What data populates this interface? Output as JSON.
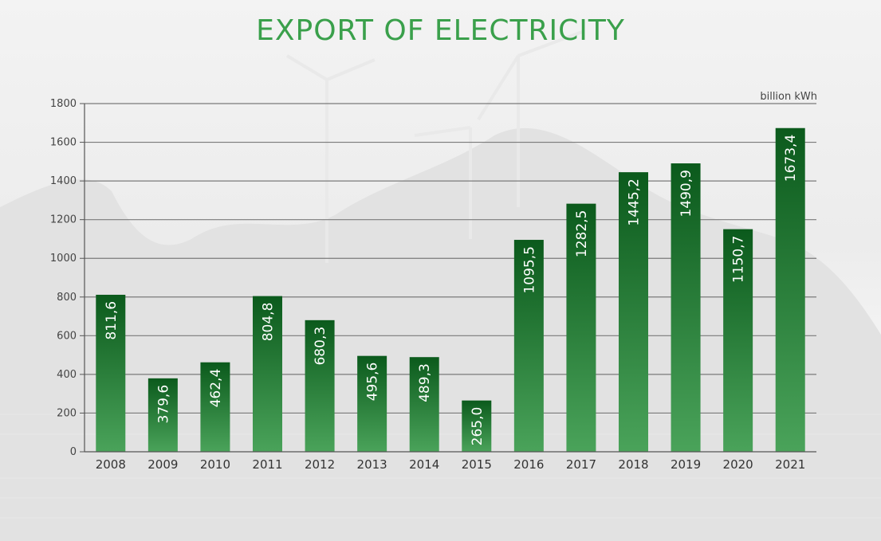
{
  "chart_data": {
    "type": "bar",
    "title": "EXPORT OF ELECTRICITY",
    "unit_label": "billion kWh",
    "categories": [
      "2008",
      "2009",
      "2010",
      "2011",
      "2012",
      "2013",
      "2014",
      "2015",
      "2016",
      "2017",
      "2018",
      "2019",
      "2020",
      "2021"
    ],
    "values": [
      811.6,
      379.6,
      462.4,
      804.8,
      680.3,
      495.6,
      489.3,
      265.0,
      1095.5,
      1282.5,
      1445.2,
      1490.9,
      1150.7,
      1673.4
    ],
    "value_labels": [
      "811,6",
      "379,6",
      "462,4",
      "804,8",
      "680,3",
      "495,6",
      "489,3",
      "265,0",
      "1095,5",
      "1282,5",
      "1445,2",
      "1490,9",
      "1150,7",
      "1673,4"
    ],
    "yticks": [
      0,
      200,
      400,
      600,
      800,
      1000,
      1200,
      1400,
      1600,
      1800
    ],
    "ylim": [
      0,
      1800
    ],
    "grid": true,
    "legend": "none",
    "colors": {
      "title": "#3aa04b",
      "bar_top": "#0b5a1c",
      "bar_bottom": "#4aa35a",
      "grid": "#7a7a7a"
    }
  }
}
